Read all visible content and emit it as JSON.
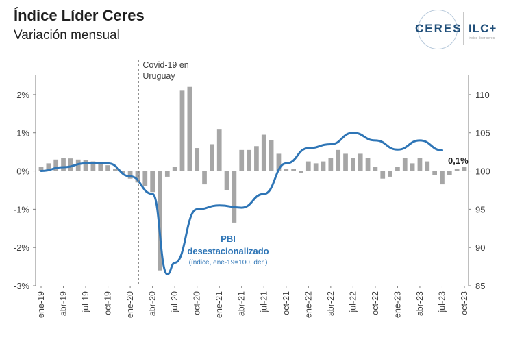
{
  "header": {
    "title": "Índice Líder Ceres",
    "subtitle": "Variación mensual"
  },
  "logo": {
    "ceres": "CERES",
    "ilc": "ILC+",
    "tagline": "índice líder ceres"
  },
  "annotations": {
    "covid_line1": "Covid-19 en",
    "covid_line2": "Uruguay",
    "series_label_line1": "PBI",
    "series_label_line2": "desestacionalizado",
    "series_note": "(índice, ene-19=100, der.)",
    "last_value": "0,1%"
  },
  "colors": {
    "bars": "#a6a6a6",
    "line": "#2e75b6",
    "axis": "#7f7f7f",
    "covid_marker": "#808080",
    "series_label": "#2e75b6"
  },
  "chart_data": {
    "type": "bar",
    "title": "Índice Líder Ceres",
    "subtitle": "Variación mensual",
    "x_tick_labels": [
      "ene-19",
      "abr-19",
      "jul-19",
      "oct-19",
      "ene-20",
      "abr-20",
      "jul-20",
      "oct-20",
      "ene-21",
      "abr-21",
      "jul-21",
      "oct-21",
      "ene-22",
      "abr-22",
      "jul-22",
      "oct-22",
      "ene-23",
      "abr-23",
      "jul-23",
      "oct-23"
    ],
    "y_left": {
      "ticks": [
        "2%",
        "1%",
        "0%",
        "-1%",
        "-2%",
        "-3%"
      ],
      "values": [
        2,
        1,
        0,
        -1,
        -2,
        -3
      ],
      "range": [
        -3,
        2.5
      ]
    },
    "y_right": {
      "ticks": [
        "110",
        "105",
        "100",
        "95",
        "90",
        "85"
      ],
      "values": [
        110,
        105,
        100,
        95,
        90,
        85
      ],
      "range": [
        85,
        112.5
      ]
    },
    "bars": {
      "name": "Índice Líder Ceres (variación mensual)",
      "axis": "left",
      "values": [
        0.1,
        0.2,
        0.3,
        0.35,
        0.33,
        0.3,
        0.28,
        0.25,
        0.2,
        0.15,
        0.05,
        -0.05,
        -0.2,
        -0.3,
        -0.4,
        -0.55,
        -2.6,
        -0.15,
        0.1,
        2.1,
        2.2,
        0.6,
        -0.35,
        0.7,
        1.1,
        -0.5,
        -1.35,
        0.55,
        0.55,
        0.65,
        0.95,
        0.8,
        0.45,
        0.05,
        0.05,
        -0.05,
        0.25,
        0.2,
        0.25,
        0.35,
        0.55,
        0.45,
        0.35,
        0.45,
        0.35,
        0.1,
        -0.2,
        -0.15,
        0.1,
        0.35,
        0.2,
        0.35,
        0.25,
        -0.1,
        -0.35,
        -0.1,
        0.05,
        0.1
      ]
    },
    "line": {
      "name": "PBI desestacionalizado (índice, ene-19=100, der.)",
      "axis": "right",
      "x_index": [
        0,
        3,
        6,
        9,
        12,
        15,
        17,
        18,
        21,
        24,
        27,
        30,
        33,
        36,
        39,
        42,
        45,
        48,
        51,
        54
      ],
      "values": [
        100,
        100.5,
        101,
        101,
        99.3,
        97,
        86.5,
        88,
        95,
        95.5,
        95.2,
        97,
        101,
        103,
        103.5,
        105,
        104,
        102.8,
        104,
        102.7
      ]
    }
  }
}
